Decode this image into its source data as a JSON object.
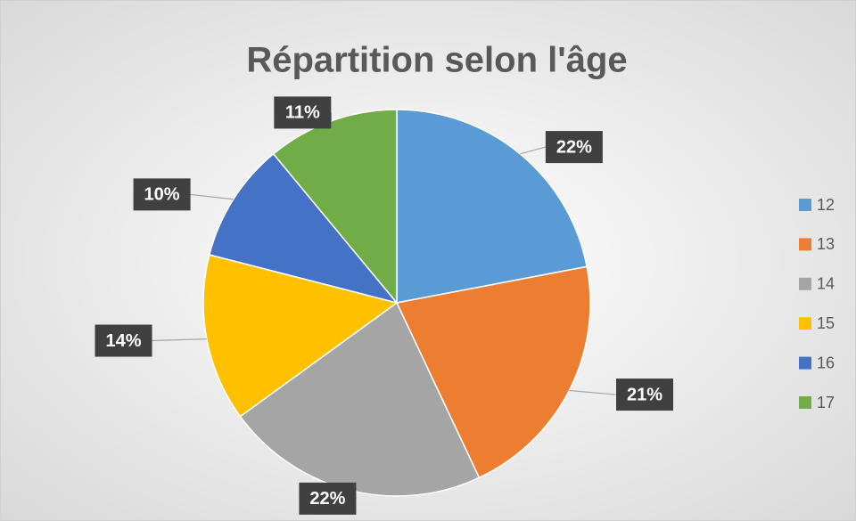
{
  "chart_data": {
    "type": "pie",
    "title": "Répartition selon l'âge",
    "categories": [
      "12",
      "13",
      "14",
      "15",
      "16",
      "17"
    ],
    "values": [
      22,
      21,
      22,
      14,
      10,
      11
    ],
    "value_labels": [
      "22%",
      "21%",
      "22%",
      "14%",
      "10%",
      "11%"
    ],
    "colors": [
      "#5b9bd5",
      "#ed7d31",
      "#a5a5a5",
      "#ffc000",
      "#4472c4",
      "#70ad47"
    ],
    "legend": "right"
  }
}
